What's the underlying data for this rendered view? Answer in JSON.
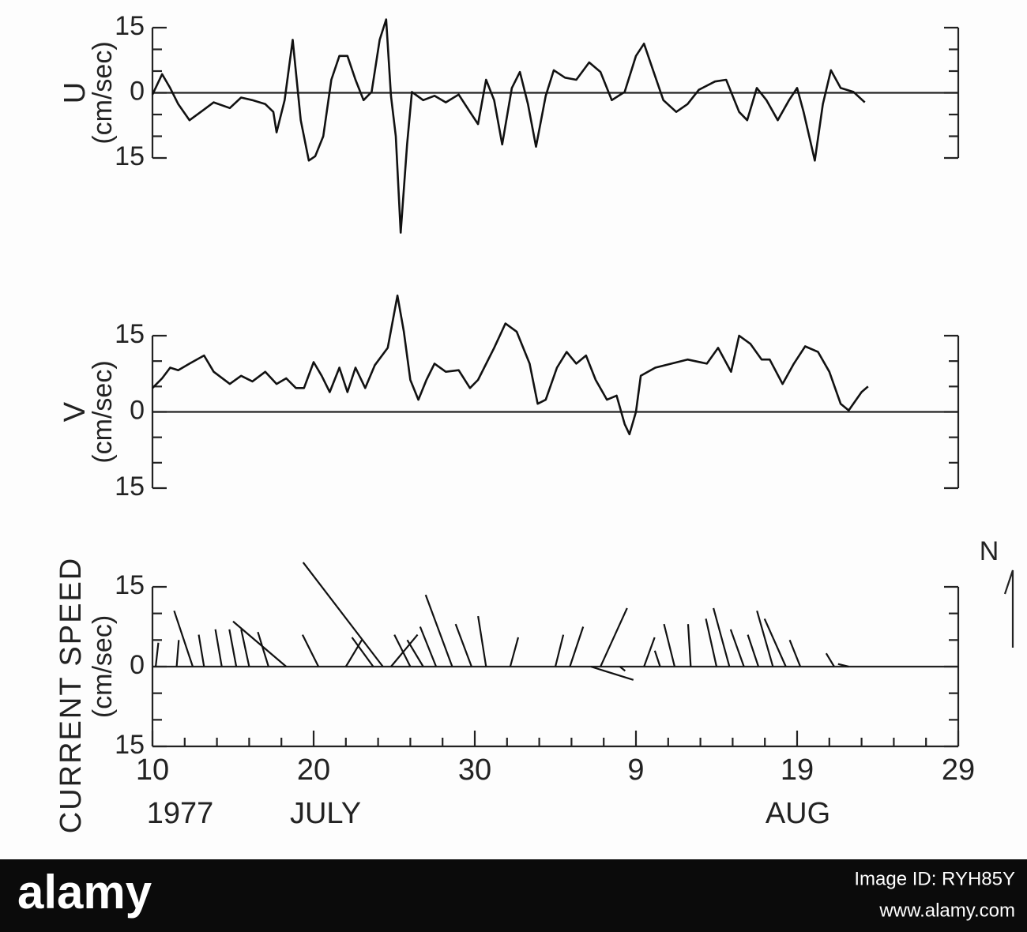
{
  "chart_data": [
    {
      "type": "line",
      "ylabel": "U",
      "yunit": "(cm/sec)",
      "ylim": [
        -15,
        15
      ],
      "yticks": [
        {
          "value": 15,
          "label": "15"
        },
        0,
        {
          "value": -15,
          "label": "15"
        }
      ],
      "yminor": [
        10,
        5,
        -5,
        -10
      ],
      "xlim": [
        0,
        50
      ],
      "x": [
        0.0,
        0.6,
        1.1,
        1.6,
        2.3,
        3.0,
        3.8,
        4.8,
        5.5,
        6.2,
        7.0,
        7.5,
        7.7,
        8.2,
        8.7,
        9.2,
        9.7,
        10.1,
        10.6,
        11.1,
        11.6,
        12.1,
        12.6,
        13.1,
        13.6,
        14.1,
        14.5,
        14.8,
        15.1,
        15.4,
        15.8,
        16.1,
        16.8,
        17.5,
        18.2,
        19.0,
        19.7,
        20.2,
        20.7,
        21.2,
        21.7,
        22.3,
        22.8,
        23.3,
        23.8,
        24.4,
        24.9,
        25.6,
        26.3,
        27.1,
        27.8,
        28.5,
        29.3,
        30.0,
        30.5,
        31.1,
        31.7,
        32.5,
        33.2,
        33.9,
        34.9,
        35.6,
        36.4,
        36.9,
        37.5,
        38.1,
        38.8,
        39.5,
        40.0,
        40.4,
        41.1,
        41.6,
        42.1,
        42.7,
        43.5,
        44.2
      ],
      "series": [
        {
          "color": "#111111",
          "values": [
            -0.4,
            4.3,
            1.1,
            -2.6,
            -6.3,
            -4.4,
            -2.2,
            -3.5,
            -1.1,
            -1.7,
            -2.6,
            -4.4,
            -9.1,
            -1.7,
            12.2,
            -6.3,
            -15.6,
            -14.6,
            -10,
            3,
            8.5,
            8.5,
            3,
            -1.7,
            0.2,
            12.2,
            16.9,
            -0.7,
            -10,
            -32.2,
            -11.9,
            0.2,
            -1.7,
            -0.7,
            -2.2,
            -0.4,
            -4.4,
            -7.2,
            3,
            -1.7,
            -11.9,
            1.1,
            4.8,
            -2.6,
            -12.4,
            -0.7,
            5.2,
            3.5,
            3,
            7,
            4.8,
            -1.7,
            0.2,
            8.5,
            11.3,
            4.8,
            -1.7,
            -4.4,
            -2.6,
            0.7,
            2.6,
            3,
            -4.4,
            -6.3,
            1.1,
            -1.7,
            -6.3,
            -1.7,
            1.1,
            -4.4,
            -15.6,
            -2.6,
            5.2,
            1.1,
            0.2,
            -2.2
          ]
        }
      ]
    },
    {
      "type": "line",
      "ylabel": "V",
      "yunit": "(cm/sec)",
      "ylim": [
        -15,
        15
      ],
      "yticks": [
        {
          "value": 15,
          "label": "15"
        },
        0,
        {
          "value": -15,
          "label": "15"
        }
      ],
      "yminor": [
        10,
        5,
        -5,
        -10
      ],
      "xlim": [
        0,
        50
      ],
      "x": [
        0.0,
        0.6,
        1.1,
        1.6,
        2.3,
        3.2,
        3.8,
        4.8,
        5.5,
        6.2,
        7.0,
        7.7,
        8.3,
        8.9,
        9.4,
        10.0,
        10.5,
        11.0,
        11.6,
        12.1,
        12.6,
        13.2,
        13.8,
        14.6,
        15.2,
        15.6,
        16.0,
        16.5,
        17.0,
        17.5,
        18.2,
        19.0,
        19.7,
        20.2,
        21.2,
        21.9,
        22.6,
        23.4,
        23.9,
        24.4,
        25.1,
        25.7,
        26.3,
        26.9,
        27.5,
        28.2,
        28.8,
        29.3,
        29.6,
        30.0,
        30.3,
        31.2,
        32.2,
        33.2,
        34.4,
        35.1,
        35.9,
        36.4,
        37.1,
        37.8,
        38.3,
        39.1,
        39.8,
        40.5,
        41.3,
        42.0,
        42.7,
        43.2,
        44.0,
        44.4
      ],
      "series": [
        {
          "color": "#111111",
          "values": [
            4.7,
            6.6,
            8.7,
            8.2,
            9.5,
            11.1,
            7.9,
            5.5,
            7.1,
            6,
            7.9,
            5.5,
            6.6,
            4.7,
            4.7,
            9.8,
            7.1,
            3.9,
            8.7,
            3.9,
            8.7,
            4.7,
            9.2,
            12.6,
            22.9,
            15.8,
            6.3,
            2.4,
            6.3,
            9.5,
            7.9,
            8.2,
            4.7,
            6.3,
            12.6,
            17.4,
            15.8,
            9.5,
            1.6,
            2.4,
            8.7,
            11.8,
            9.5,
            11.1,
            6.3,
            2.4,
            3.2,
            -2.4,
            -4.4,
            0,
            7.1,
            8.7,
            9.5,
            10.3,
            9.5,
            12.6,
            7.9,
            15,
            13.4,
            10.3,
            10.3,
            5.5,
            9.5,
            12.9,
            11.8,
            7.9,
            1.6,
            0.3,
            3.9,
            5
          ]
        }
      ]
    },
    {
      "type": "stick",
      "ylabel": "CURRENT  SPEED",
      "yunit": "(cm/sec)",
      "ylim": [
        -15,
        15
      ],
      "yticks": [
        {
          "value": 15,
          "label": "15"
        },
        0,
        {
          "value": -15,
          "label": "15"
        }
      ],
      "yminor": [
        10,
        5,
        -5,
        -10
      ],
      "xlim": [
        0,
        50
      ],
      "xticks": [
        {
          "value": 0,
          "label": "10"
        },
        {
          "value": 10,
          "label": "20"
        },
        {
          "value": 20,
          "label": "30"
        },
        {
          "value": 30,
          "label": "9"
        },
        {
          "value": 40,
          "label": "19"
        },
        {
          "value": 50,
          "label": "29"
        }
      ],
      "xminor": [
        2,
        4,
        6,
        8,
        12,
        14,
        16,
        18,
        22,
        24,
        26,
        28,
        32,
        34,
        36,
        38,
        42,
        44,
        46,
        48
      ],
      "year": "1977",
      "months": [
        "JULY",
        "AUG"
      ],
      "north": "N",
      "x": [
        0.2,
        1.5,
        2.5,
        3.2,
        4.3,
        5.2,
        6.0,
        7.2,
        8.3,
        10.3,
        12.0,
        13.7,
        14.3,
        14.8,
        16.0,
        16.8,
        17.6,
        18.6,
        19.8,
        20.7,
        22.2,
        25.0,
        25.9,
        27.2,
        27.8,
        29.0,
        30.5,
        31.5,
        32.4,
        33.4,
        35.0,
        35.8,
        36.7,
        37.6,
        38.5,
        39.3,
        40.2,
        42.3,
        43.2
      ],
      "u": [
        0.5,
        0.4,
        -3.5,
        -1,
        -1.2,
        -1.3,
        -1.5,
        -2,
        -10,
        -3,
        3,
        -4,
        -15,
        5,
        -3,
        -3,
        -3,
        -5,
        -3,
        -1.5,
        1.5,
        1.5,
        2.5,
        8,
        5,
        1,
        2,
        -1,
        -2,
        -0.5,
        -2,
        -3,
        -2.5,
        -2,
        -3,
        -4,
        -2,
        -1.5,
        -2
      ],
      "v": [
        4.5,
        5,
        10.5,
        6,
        7,
        7,
        7,
        6.5,
        8.5,
        6,
        5,
        5.5,
        19.6,
        6,
        6,
        5,
        7.5,
        13.5,
        8,
        9.5,
        5.5,
        6,
        7.5,
        -2.5,
        11,
        -0.8,
        5.5,
        3,
        8,
        8,
        9,
        11,
        7,
        6,
        10.5,
        9,
        5,
        2.5,
        0.5
      ]
    }
  ],
  "footer": {
    "brand": "alamy",
    "image_id": "Image ID: RYH85Y",
    "url": "www.alamy.com"
  }
}
